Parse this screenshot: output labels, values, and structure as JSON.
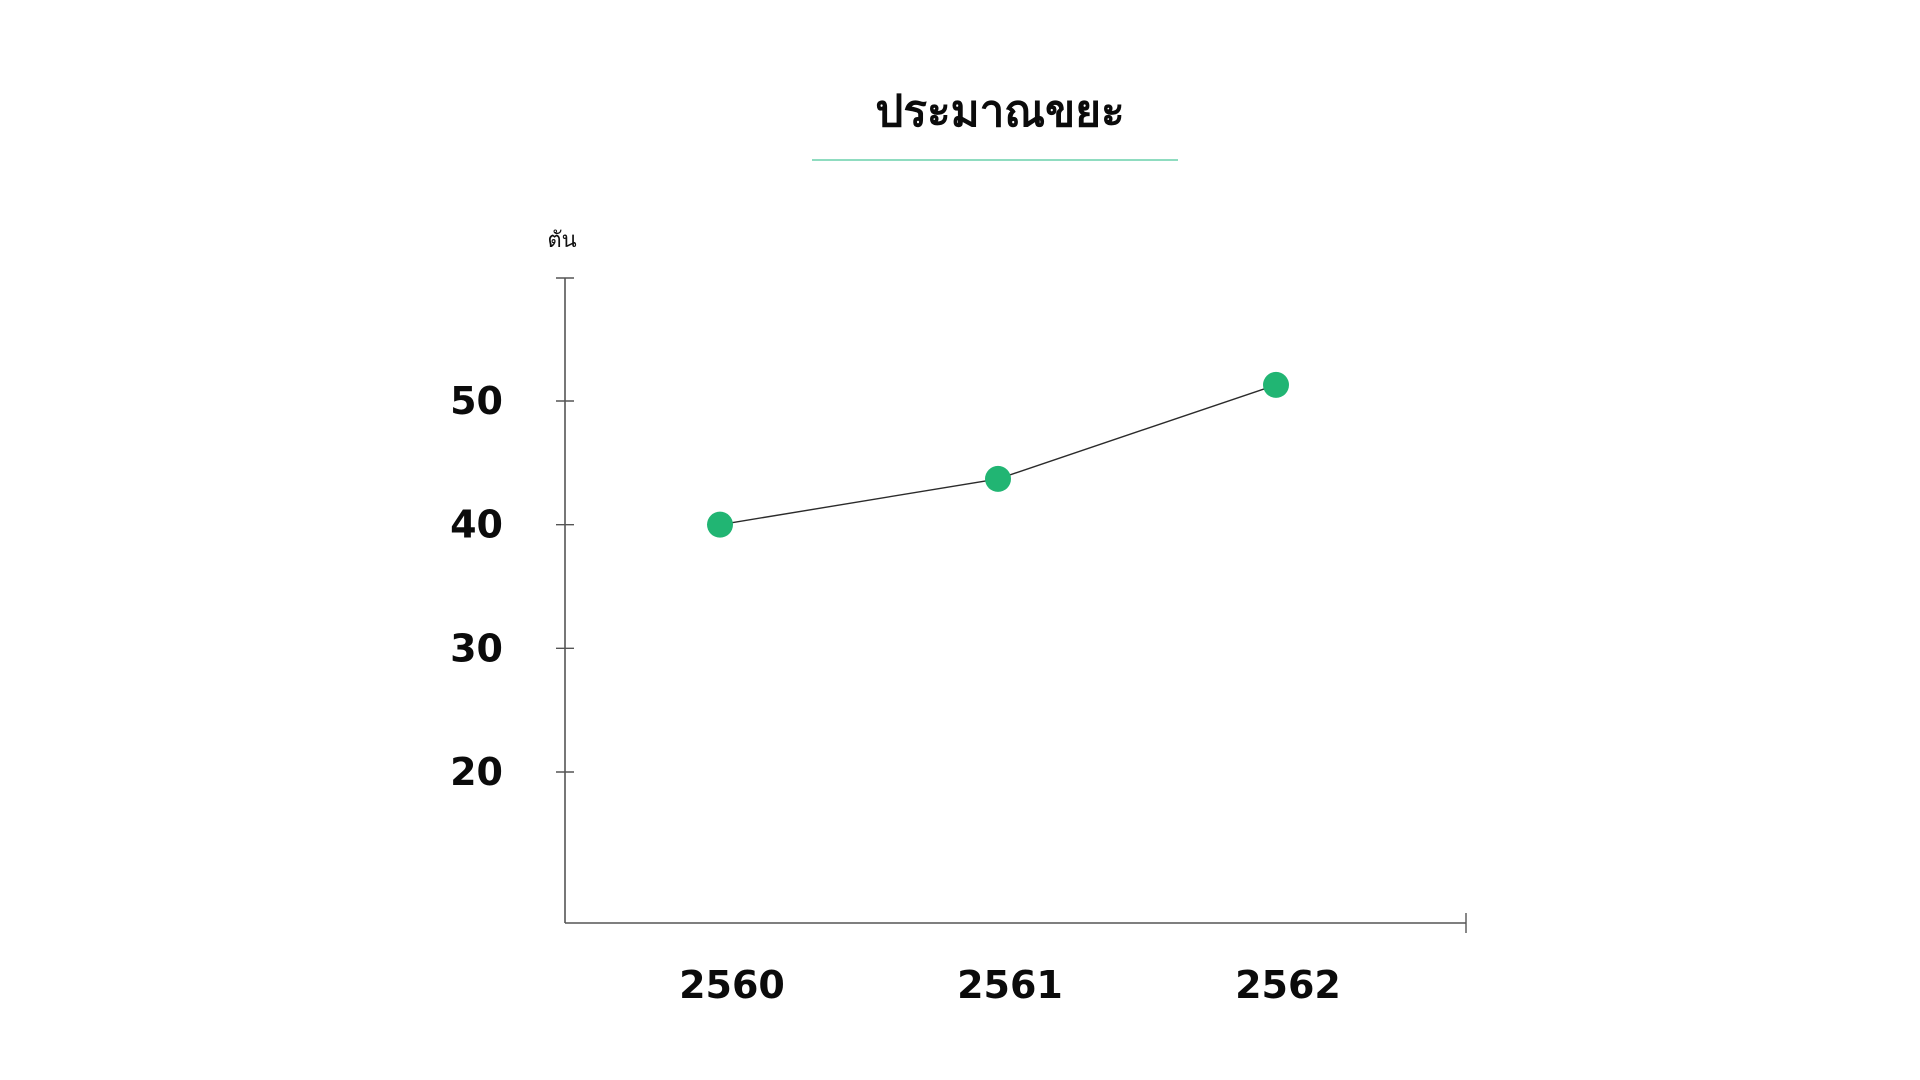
{
  "chart_data": {
    "type": "line",
    "title": "ประมาณขยะ",
    "ylabel": "ตัน",
    "xlabel": "",
    "categories": [
      "2560",
      "2561",
      "2562"
    ],
    "series": [
      {
        "values": [
          40,
          43.7,
          51.3
        ]
      }
    ],
    "y_ticks": [
      20,
      30,
      40,
      50
    ],
    "ylim": [
      8,
      60
    ],
    "grid": false,
    "legend": "none",
    "colors": {
      "marker": "#21b573",
      "line": "#2b2b2b",
      "axis": "#555555",
      "title_underline": "#8fdcc0"
    }
  }
}
